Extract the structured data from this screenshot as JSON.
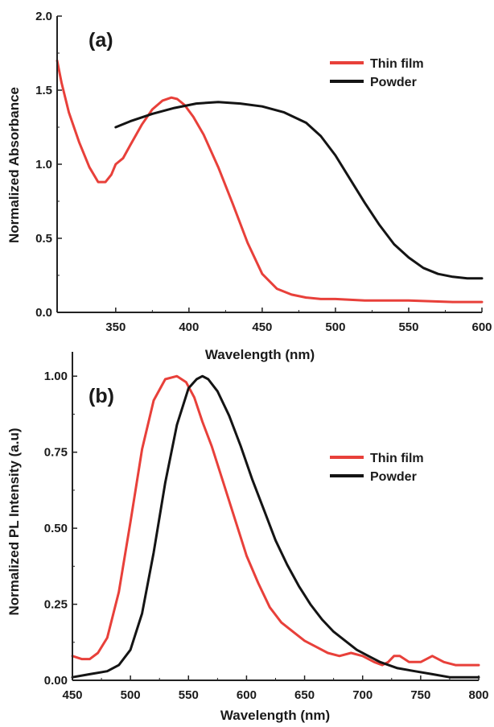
{
  "chart_data": [
    {
      "panel": "(a)",
      "type": "line",
      "title": "",
      "xlabel": "Wavelength (nm)",
      "ylabel": "Normalized Absorbance",
      "xlim": [
        310,
        600
      ],
      "ylim": [
        0.0,
        2.0
      ],
      "xticks": [
        350,
        400,
        450,
        500,
        550,
        600
      ],
      "yticks": [
        "0.0",
        "0.5",
        "1.0",
        "1.5",
        "2.0"
      ],
      "grid": false,
      "legend_position": "top-right",
      "series": [
        {
          "name": "Thin film",
          "color": "#e8403a",
          "x": [
            310,
            313,
            318,
            325,
            332,
            338,
            343,
            347,
            350,
            355,
            360,
            368,
            375,
            382,
            388,
            392,
            397,
            403,
            410,
            420,
            430,
            440,
            450,
            460,
            470,
            480,
            490,
            500,
            520,
            550,
            580,
            600
          ],
          "y": [
            1.7,
            1.55,
            1.35,
            1.15,
            0.98,
            0.88,
            0.88,
            0.93,
            1.0,
            1.04,
            1.13,
            1.27,
            1.37,
            1.43,
            1.45,
            1.44,
            1.4,
            1.32,
            1.2,
            0.98,
            0.73,
            0.47,
            0.26,
            0.16,
            0.12,
            0.1,
            0.09,
            0.09,
            0.08,
            0.08,
            0.07,
            0.07
          ]
        },
        {
          "name": "Powder",
          "color": "#141414",
          "x": [
            350,
            360,
            375,
            390,
            405,
            420,
            435,
            450,
            465,
            480,
            490,
            500,
            510,
            520,
            530,
            540,
            550,
            560,
            570,
            580,
            590,
            600
          ],
          "y": [
            1.25,
            1.29,
            1.34,
            1.38,
            1.41,
            1.42,
            1.41,
            1.39,
            1.35,
            1.28,
            1.19,
            1.06,
            0.9,
            0.74,
            0.59,
            0.46,
            0.37,
            0.3,
            0.26,
            0.24,
            0.23,
            0.23
          ]
        }
      ]
    },
    {
      "panel": "(b)",
      "type": "line",
      "title": "",
      "xlabel": "Wavelength (nm)",
      "ylabel": "Normalized PL Intensity (a.u)",
      "xlim": [
        450,
        800
      ],
      "ylim": [
        0.0,
        1.08
      ],
      "xticks": [
        450,
        500,
        550,
        600,
        650,
        700,
        750,
        800
      ],
      "yticks": [
        "0.00",
        "0.25",
        "0.50",
        "0.75",
        "1.00"
      ],
      "grid": false,
      "legend_position": "right",
      "series": [
        {
          "name": "Thin film",
          "color": "#e8403a",
          "x": [
            450,
            458,
            465,
            472,
            480,
            490,
            500,
            510,
            520,
            530,
            540,
            548,
            555,
            562,
            570,
            580,
            590,
            600,
            610,
            620,
            630,
            640,
            650,
            660,
            670,
            680,
            690,
            700,
            710,
            717,
            722,
            727,
            732,
            740,
            750,
            760,
            770,
            780,
            790,
            800
          ],
          "y": [
            0.08,
            0.07,
            0.07,
            0.09,
            0.14,
            0.29,
            0.52,
            0.76,
            0.92,
            0.99,
            1.0,
            0.98,
            0.93,
            0.85,
            0.77,
            0.65,
            0.53,
            0.41,
            0.32,
            0.24,
            0.19,
            0.16,
            0.13,
            0.11,
            0.09,
            0.08,
            0.09,
            0.08,
            0.06,
            0.05,
            0.06,
            0.08,
            0.08,
            0.06,
            0.06,
            0.08,
            0.06,
            0.05,
            0.05,
            0.05
          ]
        },
        {
          "name": "Powder",
          "color": "#141414",
          "x": [
            450,
            465,
            480,
            490,
            500,
            510,
            520,
            530,
            540,
            550,
            557,
            562,
            567,
            575,
            585,
            595,
            605,
            615,
            625,
            635,
            645,
            655,
            665,
            675,
            685,
            695,
            705,
            715,
            730,
            745,
            760,
            775,
            790,
            800
          ],
          "y": [
            0.01,
            0.02,
            0.03,
            0.05,
            0.1,
            0.22,
            0.42,
            0.65,
            0.84,
            0.96,
            0.99,
            1.0,
            0.99,
            0.95,
            0.87,
            0.77,
            0.66,
            0.56,
            0.46,
            0.38,
            0.31,
            0.25,
            0.2,
            0.16,
            0.13,
            0.1,
            0.08,
            0.06,
            0.04,
            0.03,
            0.02,
            0.01,
            0.01,
            0.01
          ]
        }
      ]
    }
  ]
}
